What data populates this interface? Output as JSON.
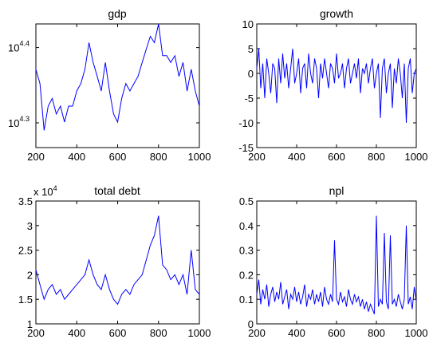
{
  "chart_data": [
    {
      "type": "line",
      "title": "gdp",
      "xlabel": "",
      "ylabel": "",
      "xlim": [
        200,
        1000
      ],
      "ylim": [
        18500,
        27000
      ],
      "yscale": "log",
      "x_ticks": [
        "200",
        "400",
        "600",
        "800",
        "1000"
      ],
      "y_ticks": [
        {
          "base": "10",
          "exp": "4.3",
          "value": 19953
        },
        {
          "base": "10",
          "exp": "4.4",
          "value": 25119
        }
      ],
      "color": "#0000ff",
      "series": [
        {
          "x": [
            200,
            220,
            240,
            260,
            280,
            300,
            320,
            340,
            360,
            380,
            400,
            420,
            440,
            460,
            480,
            500,
            520,
            540,
            560,
            580,
            600,
            620,
            640,
            660,
            680,
            700,
            720,
            740,
            760,
            780,
            800,
            820,
            840,
            860,
            880,
            900,
            920,
            940,
            960,
            980,
            1000
          ],
          "values": [
            23500,
            22500,
            19500,
            21000,
            21500,
            20500,
            21000,
            20000,
            21000,
            21000,
            22000,
            22500,
            23500,
            25500,
            24000,
            23000,
            22000,
            24000,
            22000,
            20500,
            20000,
            21500,
            22500,
            22000,
            22500,
            23000,
            24000,
            25000,
            26000,
            25500,
            27000,
            24500,
            24500,
            24000,
            24500,
            23000,
            24000,
            22000,
            23500,
            22000,
            21000
          ]
        }
      ]
    },
    {
      "type": "line",
      "title": "growth",
      "xlabel": "",
      "ylabel": "",
      "xlim": [
        200,
        1000
      ],
      "ylim": [
        -15,
        10
      ],
      "x_ticks": [
        "200",
        "400",
        "600",
        "800",
        "1000"
      ],
      "y_ticks": [
        "-15",
        "-10",
        "-5",
        "0",
        "5",
        "10"
      ],
      "color": "#0000ff",
      "series": [
        {
          "x": [
            200,
            210,
            220,
            230,
            240,
            250,
            260,
            270,
            280,
            290,
            300,
            310,
            320,
            330,
            340,
            350,
            360,
            370,
            380,
            390,
            400,
            410,
            420,
            430,
            440,
            450,
            460,
            470,
            480,
            490,
            500,
            510,
            520,
            530,
            540,
            550,
            560,
            570,
            580,
            590,
            600,
            610,
            620,
            630,
            640,
            650,
            660,
            670,
            680,
            690,
            700,
            710,
            720,
            730,
            740,
            750,
            760,
            770,
            780,
            790,
            800,
            810,
            820,
            830,
            840,
            850,
            860,
            870,
            880,
            890,
            900,
            910,
            920,
            930,
            940,
            950,
            960,
            970,
            980,
            990,
            1000
          ],
          "values": [
            1,
            5,
            -3,
            2,
            -5,
            3,
            0,
            -4,
            2,
            1,
            -6,
            3,
            -2,
            4,
            -1,
            2,
            -3,
            1,
            5,
            -2,
            0,
            3,
            -4,
            1,
            2,
            -3,
            4,
            0,
            -2,
            3,
            1,
            -5,
            2,
            -1,
            3,
            0,
            -3,
            2,
            1,
            -2,
            4,
            -1,
            0,
            2,
            -3,
            1,
            3,
            -2,
            0,
            2,
            -1,
            3,
            -4,
            1,
            0,
            2,
            -2,
            1,
            3,
            -3,
            0,
            2,
            -9,
            1,
            3,
            -4,
            0,
            2,
            -7,
            1,
            -2,
            3,
            0,
            -5,
            2,
            -10,
            1,
            3,
            -4,
            0,
            1
          ]
        }
      ]
    },
    {
      "type": "line",
      "title": "total debt",
      "xlabel": "",
      "ylabel": "",
      "y_multiplier": {
        "base": "x 10",
        "exp": "4"
      },
      "xlim": [
        200,
        1000
      ],
      "ylim": [
        1,
        3.5
      ],
      "x_ticks": [
        "200",
        "400",
        "600",
        "800",
        "1000"
      ],
      "y_ticks": [
        "1",
        "1.5",
        "2",
        "2.5",
        "3",
        "3.5"
      ],
      "color": "#0000ff",
      "series": [
        {
          "x": [
            200,
            220,
            240,
            260,
            280,
            300,
            320,
            340,
            360,
            380,
            400,
            420,
            440,
            460,
            480,
            500,
            520,
            540,
            560,
            580,
            600,
            620,
            640,
            660,
            680,
            700,
            720,
            740,
            760,
            780,
            800,
            820,
            840,
            860,
            880,
            900,
            920,
            940,
            960,
            980,
            1000
          ],
          "values": [
            2.1,
            1.8,
            1.5,
            1.7,
            1.8,
            1.6,
            1.7,
            1.5,
            1.6,
            1.7,
            1.8,
            1.9,
            2.0,
            2.3,
            2.0,
            1.8,
            1.7,
            2.0,
            1.7,
            1.5,
            1.4,
            1.6,
            1.7,
            1.6,
            1.8,
            1.9,
            2.0,
            2.3,
            2.6,
            2.8,
            3.2,
            2.2,
            2.1,
            1.9,
            2.0,
            1.8,
            2.0,
            1.6,
            2.5,
            1.7,
            1.6
          ]
        }
      ]
    },
    {
      "type": "line",
      "title": "npl",
      "xlabel": "",
      "ylabel": "",
      "xlim": [
        200,
        1000
      ],
      "ylim": [
        0,
        0.5
      ],
      "x_ticks": [
        "200",
        "400",
        "600",
        "800",
        "1000"
      ],
      "y_ticks": [
        "0",
        "0.1",
        "0.2",
        "0.3",
        "0.4",
        "0.5"
      ],
      "color": "#0000ff",
      "series": [
        {
          "x": [
            200,
            210,
            220,
            230,
            240,
            250,
            260,
            270,
            280,
            290,
            300,
            310,
            320,
            330,
            340,
            350,
            360,
            370,
            380,
            390,
            400,
            410,
            420,
            430,
            440,
            450,
            460,
            470,
            480,
            490,
            500,
            510,
            520,
            530,
            540,
            550,
            560,
            570,
            580,
            590,
            600,
            610,
            620,
            630,
            640,
            650,
            660,
            670,
            680,
            690,
            700,
            710,
            720,
            730,
            740,
            750,
            760,
            770,
            780,
            790,
            800,
            810,
            820,
            830,
            840,
            850,
            860,
            870,
            880,
            890,
            900,
            910,
            920,
            930,
            940,
            950,
            960,
            970,
            980,
            990,
            1000
          ],
          "values": [
            0.12,
            0.18,
            0.08,
            0.14,
            0.1,
            0.16,
            0.07,
            0.12,
            0.15,
            0.09,
            0.13,
            0.1,
            0.17,
            0.08,
            0.11,
            0.14,
            0.06,
            0.12,
            0.1,
            0.15,
            0.09,
            0.13,
            0.08,
            0.11,
            0.16,
            0.07,
            0.12,
            0.1,
            0.14,
            0.08,
            0.12,
            0.09,
            0.13,
            0.07,
            0.15,
            0.1,
            0.08,
            0.12,
            0.09,
            0.34,
            0.1,
            0.08,
            0.13,
            0.09,
            0.11,
            0.07,
            0.14,
            0.1,
            0.08,
            0.12,
            0.09,
            0.11,
            0.07,
            0.1,
            0.06,
            0.09,
            0.05,
            0.08,
            0.06,
            0.04,
            0.44,
            0.07,
            0.1,
            0.08,
            0.37,
            0.09,
            0.06,
            0.36,
            0.08,
            0.1,
            0.07,
            0.12,
            0.09,
            0.06,
            0.1,
            0.4,
            0.08,
            0.11,
            0.06,
            0.15,
            0.09
          ]
        }
      ]
    }
  ]
}
